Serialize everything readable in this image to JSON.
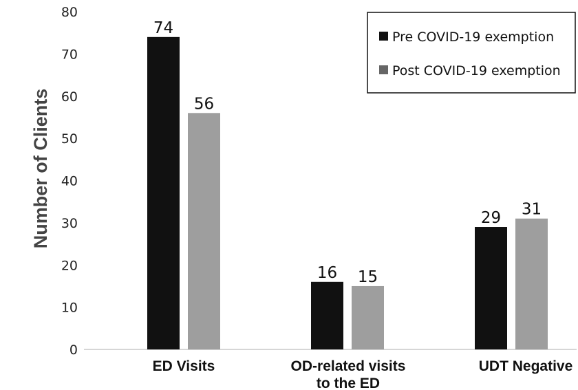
{
  "chart_data": {
    "type": "bar",
    "categories": [
      "ED Visits",
      "OD-related visits to the ED",
      "UDT Negative"
    ],
    "category_lines": [
      [
        "ED Visits"
      ],
      [
        "OD-related visits",
        "to the ED"
      ],
      [
        "UDT Negative"
      ]
    ],
    "series": [
      {
        "name": "Pre COVID-19 exemption",
        "values": [
          74,
          16,
          29
        ],
        "color": "#111111"
      },
      {
        "name": "Post COVID-19 exemption",
        "values": [
          56,
          15,
          31
        ],
        "color": "#9e9e9e"
      }
    ],
    "data_labels": [
      [
        "74",
        "16",
        "29"
      ],
      [
        "56",
        "15",
        "31"
      ]
    ],
    "title": "",
    "xlabel": "",
    "ylabel": "Number of Clients",
    "ylim": [
      0,
      80
    ],
    "yticks": [
      0,
      10,
      20,
      30,
      40,
      50,
      60,
      70,
      80
    ],
    "grid": false,
    "legend_position": "top-right",
    "legend_swatch_colors": [
      "#111111",
      "#666666"
    ]
  }
}
